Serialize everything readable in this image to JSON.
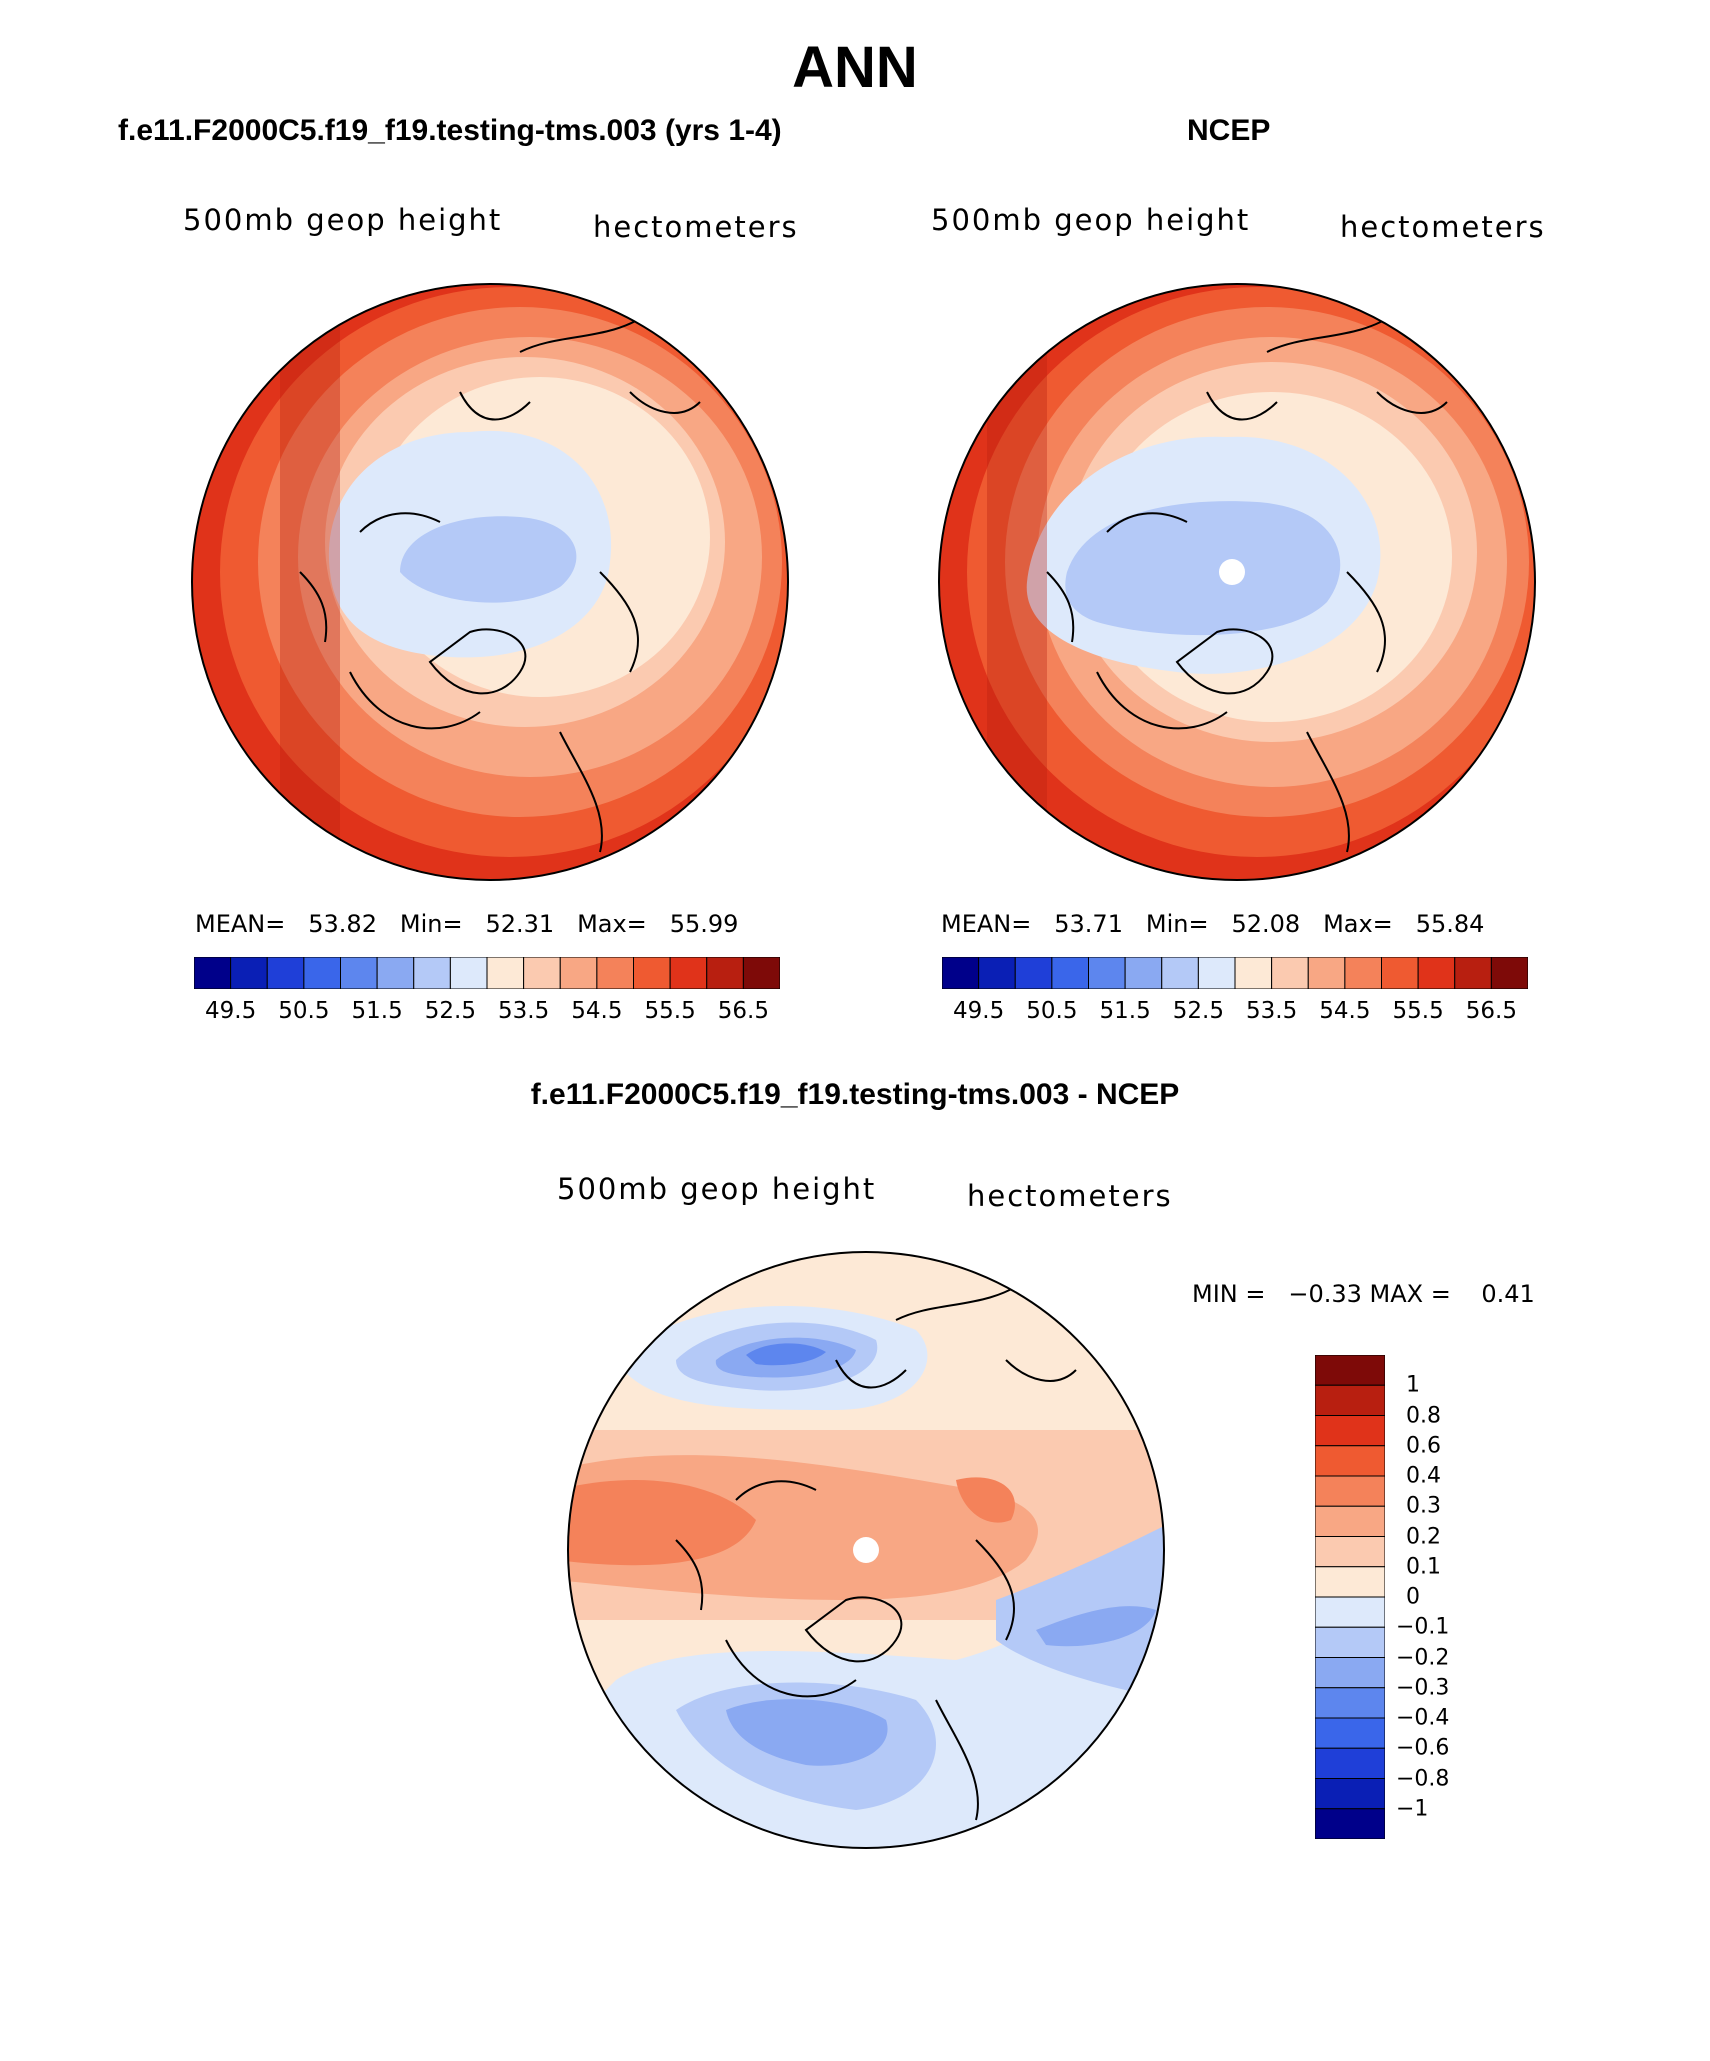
{
  "figure": {
    "title": "ANN"
  },
  "panels": [
    {
      "id": "model",
      "title": "f.e11.F2000C5.f19_f19.testing-tms.003 (yrs 1-4)",
      "variable": "500mb geop height",
      "units": "hectometers",
      "stats": {
        "mean_label": "MEAN=",
        "mean": "53.82",
        "min_label": "Min=",
        "min": "52.31",
        "max_label": "Max=",
        "max": "55.99"
      }
    },
    {
      "id": "obs",
      "title": "NCEP",
      "variable": "500mb geop height",
      "units": "hectometers",
      "stats": {
        "mean_label": "MEAN=",
        "mean": "53.71",
        "min_label": "Min=",
        "min": "52.08",
        "max_label": "Max=",
        "max": "55.84"
      }
    },
    {
      "id": "diff",
      "title": "f.e11.F2000C5.f19_f19.testing-tms.003 - NCEP",
      "variable": "500mb geop height",
      "units": "hectometers",
      "stats_text": "MIN =   −0.33 MAX =    0.41"
    }
  ],
  "colorbars": {
    "fields": {
      "levels": [
        "49.5",
        "50.5",
        "51.5",
        "52.5",
        "53.5",
        "54.5",
        "55.5",
        "56.5"
      ],
      "colors": [
        "#00008a",
        "#0a1fb5",
        "#1f3fd8",
        "#3a66ea",
        "#5d86ee",
        "#8aa9f2",
        "#b4c9f7",
        "#dde9fb",
        "#fde9d6",
        "#fbcab0",
        "#f8a784",
        "#f4825a",
        "#ef5a31",
        "#e0331a",
        "#b81f10",
        "#7e0a08"
      ]
    },
    "diff": {
      "levels": [
        "1",
        "0.8",
        "0.6",
        "0.4",
        "0.3",
        "0.2",
        "0.1",
        "0",
        "−0.1",
        "−0.2",
        "−0.3",
        "−0.4",
        "−0.6",
        "−0.8",
        "−1"
      ],
      "colors": [
        "#7e0a08",
        "#b81f10",
        "#e0331a",
        "#ef5a31",
        "#f4825a",
        "#f8a784",
        "#fbcab0",
        "#fde9d6",
        "#dde9fb",
        "#b4c9f7",
        "#8aa9f2",
        "#5d86ee",
        "#3a66ea",
        "#1f3fd8",
        "#0a1fb5",
        "#00008a"
      ]
    }
  }
}
